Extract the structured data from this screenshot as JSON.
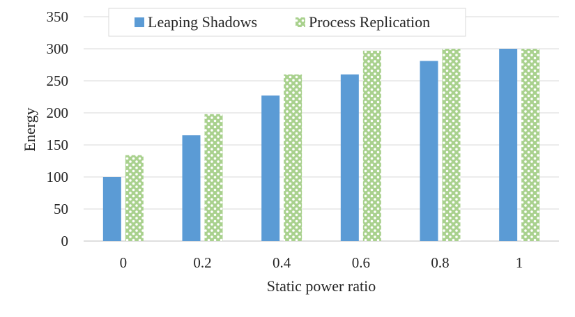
{
  "chart_data": {
    "type": "bar",
    "title": "",
    "xlabel": "Static power ratio",
    "ylabel": "Energy",
    "ylim": [
      0,
      350
    ],
    "yticks": [
      0,
      50,
      100,
      150,
      200,
      250,
      300,
      350
    ],
    "grid": "horizontal",
    "legend_position": "top",
    "categories": [
      "0",
      "0.2",
      "0.4",
      "0.6",
      "0.8",
      "1"
    ],
    "series": [
      {
        "name": "Leaping Shadows",
        "color": "#5b9bd5",
        "pattern": "solid",
        "values": [
          100,
          165,
          227,
          260,
          281,
          300
        ]
      },
      {
        "name": "Process Replication",
        "color": "#a9d18e",
        "pattern": "dotted",
        "values": [
          134,
          198,
          260,
          297,
          300,
          300
        ]
      }
    ]
  }
}
